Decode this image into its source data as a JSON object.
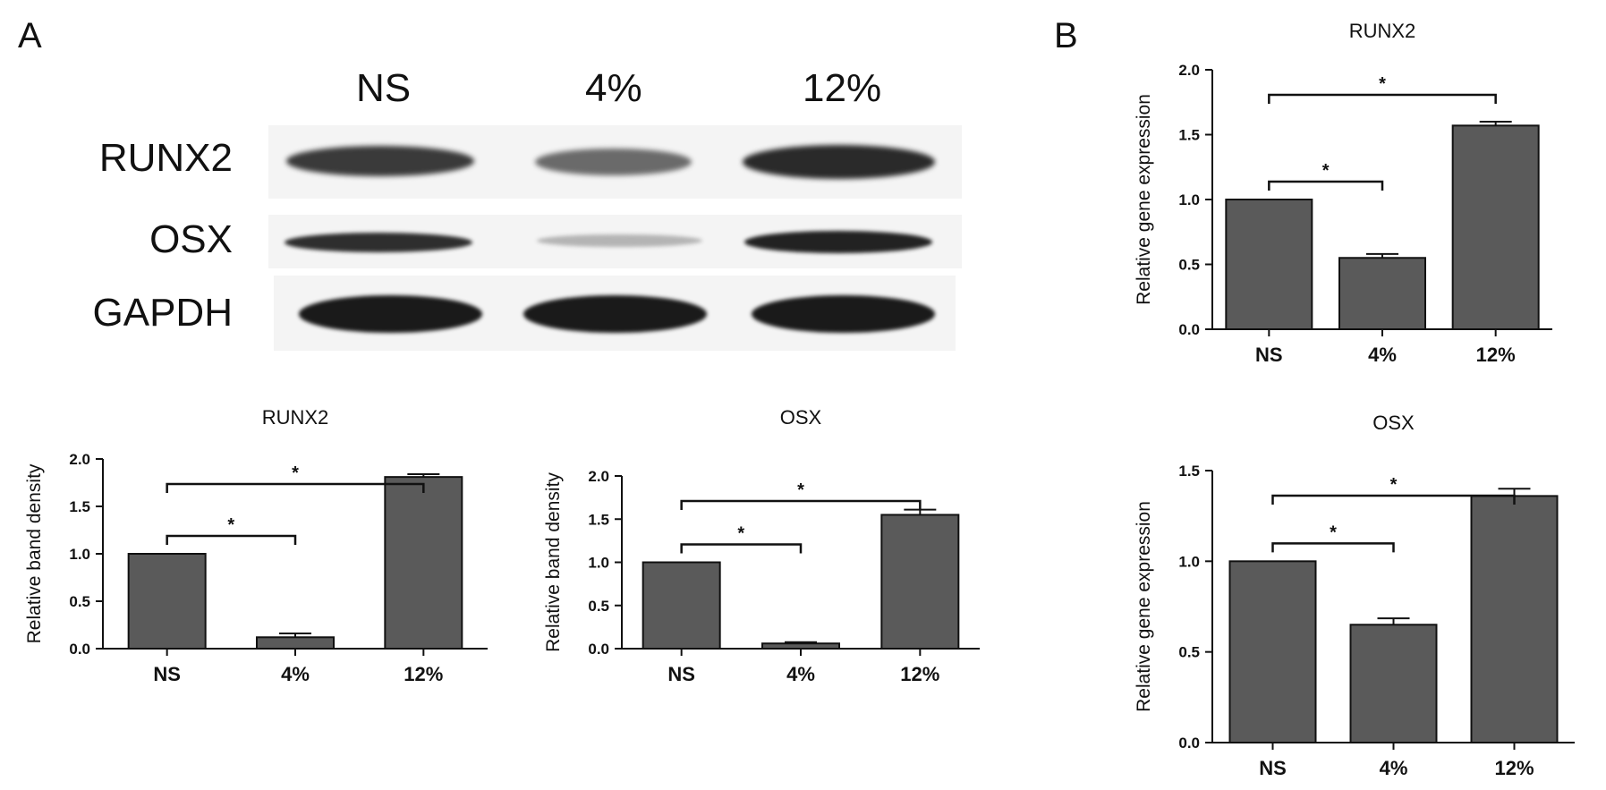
{
  "panels": {
    "a": "A",
    "b": "B"
  },
  "blot": {
    "lanes": [
      "NS",
      "4%",
      "12%"
    ],
    "rows": [
      {
        "label": "RUNX2"
      },
      {
        "label": "OSX"
      },
      {
        "label": "GAPDH"
      }
    ]
  },
  "colors": {
    "bar": "#5a5a5a",
    "axis": "#111111",
    "blot_bg": "#f4f4f4",
    "band": "#1e1e1e"
  },
  "chart_data": [
    {
      "id": "a-runx2",
      "type": "bar",
      "title": "RUNX2",
      "xlabel": "",
      "ylabel": "Relative band density",
      "categories": [
        "NS",
        "4%",
        "12%"
      ],
      "values": [
        1.0,
        0.12,
        1.81
      ],
      "errors": [
        0.0,
        0.04,
        0.03
      ],
      "ylim": [
        0,
        2.0
      ],
      "yticks": [
        "0.0",
        "0.5",
        "1.0",
        "1.5",
        "2.0"
      ],
      "significance": [
        {
          "from": 0,
          "to": 1,
          "label": "*"
        },
        {
          "from": 0,
          "to": 2,
          "label": "*"
        }
      ]
    },
    {
      "id": "a-osx",
      "type": "bar",
      "title": "OSX",
      "xlabel": "",
      "ylabel": "Relative band density",
      "categories": [
        "NS",
        "4%",
        "12%"
      ],
      "values": [
        1.0,
        0.06,
        1.55
      ],
      "errors": [
        0.0,
        0.015,
        0.06
      ],
      "ylim": [
        0,
        2.0
      ],
      "yticks": [
        "0.0",
        "0.5",
        "1.0",
        "1.5",
        "2.0"
      ],
      "significance": [
        {
          "from": 0,
          "to": 1,
          "label": "*"
        },
        {
          "from": 0,
          "to": 2,
          "label": "*"
        }
      ]
    },
    {
      "id": "b-runx2",
      "type": "bar",
      "title": "RUNX2",
      "xlabel": "",
      "ylabel": "Relative gene expression",
      "categories": [
        "NS",
        "4%",
        "12%"
      ],
      "values": [
        1.0,
        0.55,
        1.57
      ],
      "errors": [
        0.0,
        0.03,
        0.03
      ],
      "ylim": [
        0,
        2.0
      ],
      "yticks": [
        "0.0",
        "0.5",
        "1.0",
        "1.5",
        "2.0"
      ],
      "significance": [
        {
          "from": 0,
          "to": 1,
          "label": "*"
        },
        {
          "from": 0,
          "to": 2,
          "label": "*"
        }
      ]
    },
    {
      "id": "b-osx",
      "type": "bar",
      "title": "OSX",
      "xlabel": "",
      "ylabel": "Relative gene expression",
      "categories": [
        "NS",
        "4%",
        "12%"
      ],
      "values": [
        1.0,
        0.65,
        1.36
      ],
      "errors": [
        0.0,
        0.035,
        0.04
      ],
      "ylim": [
        0,
        1.5
      ],
      "yticks": [
        "0.0",
        "0.5",
        "1.0",
        "1.5"
      ],
      "significance": [
        {
          "from": 0,
          "to": 1,
          "label": "*"
        },
        {
          "from": 0,
          "to": 2,
          "label": "*"
        }
      ]
    }
  ]
}
